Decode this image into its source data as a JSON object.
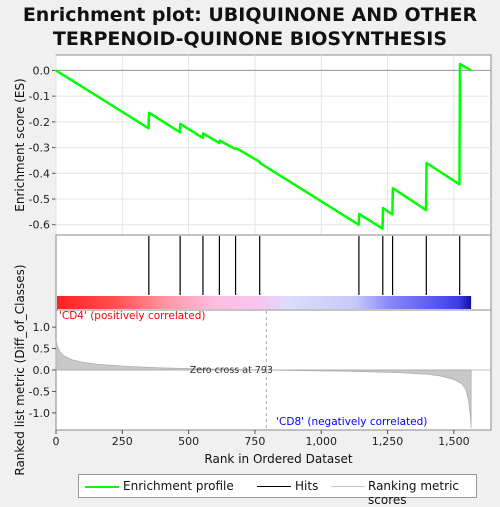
{
  "title": {
    "line1": "Enrichment plot: UBIQUINONE AND OTHER",
    "line2": "TERPENOID-QUINONE BIOSYNTHESIS"
  },
  "colors": {
    "es_line": "#00ff00",
    "hit": "#000000",
    "ranking_fill": "#c8c8c8",
    "positive_label": "#ff0000",
    "negative_label": "#0000ff",
    "background": "#f0f0f0"
  },
  "chart_data": [
    {
      "type": "line",
      "name": "enrichment-profile",
      "ylabel": "Enrichment score (ES)",
      "xlim": [
        0,
        1640
      ],
      "ylim": [
        -0.64,
        0.06
      ],
      "y_ticks": [
        0.0,
        -0.1,
        -0.2,
        -0.3,
        -0.4,
        -0.5,
        -0.6
      ],
      "y_tick_labels": [
        "0.0",
        "-0.1",
        "-0.2",
        "-0.3",
        "-0.4",
        "-0.5",
        "-0.6"
      ],
      "grid": true,
      "points": [
        [
          0,
          0.0
        ],
        [
          349,
          -0.225
        ],
        [
          351,
          -0.165
        ],
        [
          467,
          -0.24
        ],
        [
          469,
          -0.208
        ],
        [
          553,
          -0.262
        ],
        [
          555,
          -0.245
        ],
        [
          615,
          -0.282
        ],
        [
          617,
          -0.273
        ],
        [
          675,
          -0.305
        ],
        [
          679,
          -0.302
        ],
        [
          767,
          -0.355
        ],
        [
          769,
          -0.36
        ],
        [
          1141,
          -0.6
        ],
        [
          1143,
          -0.558
        ],
        [
          1231,
          -0.615
        ],
        [
          1233,
          -0.535
        ],
        [
          1268,
          -0.56
        ],
        [
          1270,
          -0.458
        ],
        [
          1395,
          -0.543
        ],
        [
          1397,
          -0.36
        ],
        [
          1521,
          -0.443
        ],
        [
          1523,
          0.025
        ],
        [
          1565,
          0.0
        ]
      ]
    },
    {
      "type": "line",
      "name": "hits",
      "hits": [
        350,
        468,
        554,
        616,
        677,
        768,
        1142,
        1232,
        1269,
        1396,
        1522
      ]
    },
    {
      "type": "area",
      "name": "ranking-metric",
      "xlabel": "Rank in Ordered Dataset",
      "ylabel": "Ranked list metric (Diff_of_Classes)",
      "xlim": [
        0,
        1640
      ],
      "ylim": [
        -1.4,
        1.4
      ],
      "x_ticks": [
        0,
        250,
        500,
        750,
        1000,
        1250,
        1500
      ],
      "x_tick_labels": [
        "0",
        "250",
        "500",
        "750",
        "1,000",
        "1,250",
        "1,500"
      ],
      "y_ticks": [
        1.0,
        0.5,
        0.0,
        -0.5,
        -1.0
      ],
      "y_tick_labels": [
        "1.0",
        "0.5",
        "0.0",
        "-0.5",
        "-1.0"
      ],
      "points": [
        [
          0,
          0.72
        ],
        [
          5,
          0.55
        ],
        [
          15,
          0.42
        ],
        [
          30,
          0.33
        ],
        [
          60,
          0.24
        ],
        [
          100,
          0.18
        ],
        [
          150,
          0.14
        ],
        [
          250,
          0.09
        ],
        [
          400,
          0.05
        ],
        [
          550,
          0.025
        ],
        [
          700,
          0.008
        ],
        [
          793,
          0.0
        ],
        [
          900,
          -0.01
        ],
        [
          1000,
          -0.02
        ],
        [
          1100,
          -0.03
        ],
        [
          1200,
          -0.045
        ],
        [
          1300,
          -0.065
        ],
        [
          1400,
          -0.1
        ],
        [
          1450,
          -0.14
        ],
        [
          1500,
          -0.22
        ],
        [
          1530,
          -0.32
        ],
        [
          1545,
          -0.45
        ],
        [
          1555,
          -0.7
        ],
        [
          1562,
          -1.05
        ],
        [
          1565,
          -1.35
        ]
      ],
      "annotations": {
        "zero_cross": "Zero cross at 793",
        "zero_cross_rank": 793,
        "positive_label": "'CD4' (positively correlated)",
        "negative_label": "'CD8' (negatively correlated)"
      }
    }
  ],
  "legend": {
    "items": [
      {
        "label": "Enrichment profile",
        "color": "#00ff00"
      },
      {
        "label": "Hits",
        "color": "#000000"
      },
      {
        "label": "Ranking metric scores",
        "color": "#c8c8c8"
      }
    ]
  }
}
